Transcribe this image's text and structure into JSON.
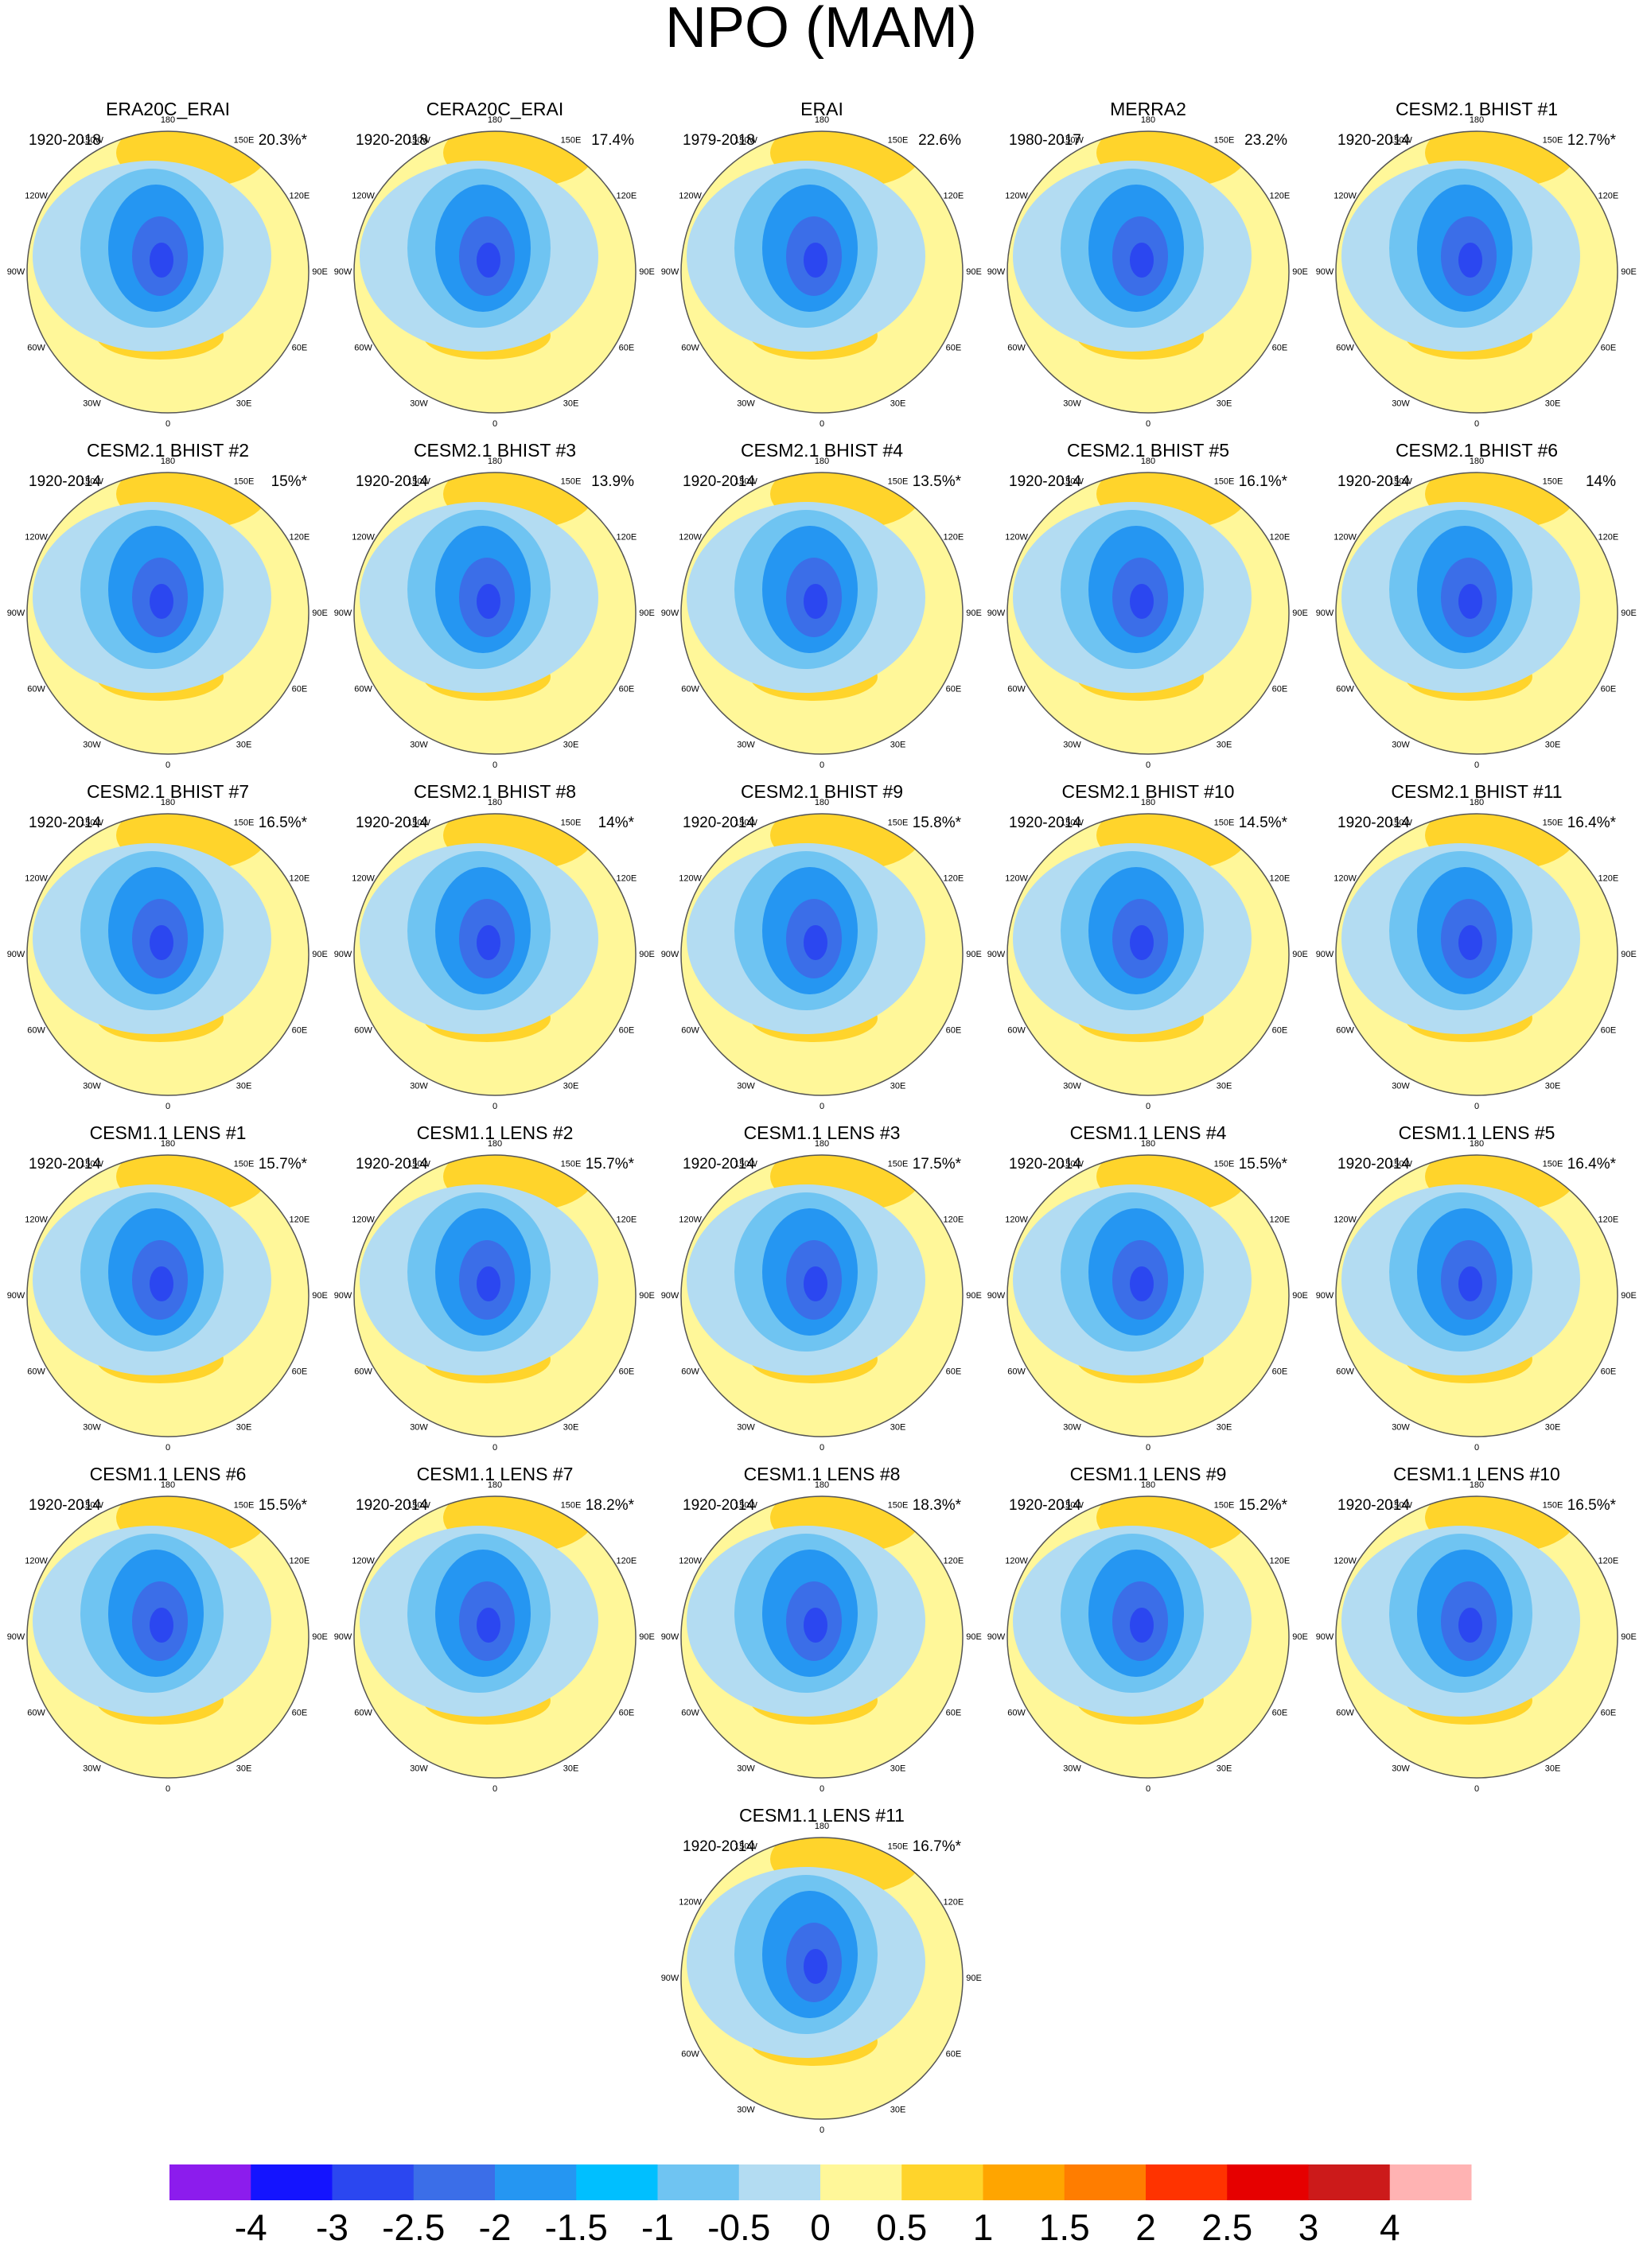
{
  "title": "NPO (MAM)",
  "longitude_labels": [
    "180",
    "150W",
    "150E",
    "120W",
    "120E",
    "90W",
    "90E",
    "60W",
    "60E",
    "30W",
    "30E",
    "0"
  ],
  "panels": [
    {
      "name": "ERA20C_ERAI",
      "period": "1920-2018",
      "percent": "20.3%*"
    },
    {
      "name": "CERA20C_ERAI",
      "period": "1920-2018",
      "percent": "17.4%"
    },
    {
      "name": "ERAI",
      "period": "1979-2018",
      "percent": "22.6%"
    },
    {
      "name": "MERRA2",
      "period": "1980-2017",
      "percent": "23.2%"
    },
    {
      "name": "CESM2.1 BHIST #1",
      "period": "1920-2014",
      "percent": "12.7%*"
    },
    {
      "name": "CESM2.1 BHIST #2",
      "period": "1920-2014",
      "percent": "15%*"
    },
    {
      "name": "CESM2.1 BHIST #3",
      "period": "1920-2014",
      "percent": "13.9%"
    },
    {
      "name": "CESM2.1 BHIST #4",
      "period": "1920-2014",
      "percent": "13.5%*"
    },
    {
      "name": "CESM2.1 BHIST #5",
      "period": "1920-2014",
      "percent": "16.1%*"
    },
    {
      "name": "CESM2.1 BHIST #6",
      "period": "1920-2014",
      "percent": "14%"
    },
    {
      "name": "CESM2.1 BHIST #7",
      "period": "1920-2014",
      "percent": "16.5%*"
    },
    {
      "name": "CESM2.1 BHIST #8",
      "period": "1920-2014",
      "percent": "14%*"
    },
    {
      "name": "CESM2.1 BHIST #9",
      "period": "1920-2014",
      "percent": "15.8%*"
    },
    {
      "name": "CESM2.1 BHIST #10",
      "period": "1920-2014",
      "percent": "14.5%*"
    },
    {
      "name": "CESM2.1 BHIST #11",
      "period": "1920-2014",
      "percent": "16.4%*"
    },
    {
      "name": "CESM1.1 LENS #1",
      "period": "1920-2014",
      "percent": "15.7%*"
    },
    {
      "name": "CESM1.1 LENS #2",
      "period": "1920-2014",
      "percent": "15.7%*"
    },
    {
      "name": "CESM1.1 LENS #3",
      "period": "1920-2014",
      "percent": "17.5%*"
    },
    {
      "name": "CESM1.1 LENS #4",
      "period": "1920-2014",
      "percent": "15.5%*"
    },
    {
      "name": "CESM1.1 LENS #5",
      "period": "1920-2014",
      "percent": "16.4%*"
    },
    {
      "name": "CESM1.1 LENS #6",
      "period": "1920-2014",
      "percent": "15.5%*"
    },
    {
      "name": "CESM1.1 LENS #7",
      "period": "1920-2014",
      "percent": "18.2%*"
    },
    {
      "name": "CESM1.1 LENS #8",
      "period": "1920-2014",
      "percent": "18.3%*"
    },
    {
      "name": "CESM1.1 LENS #9",
      "period": "1920-2014",
      "percent": "15.2%*"
    },
    {
      "name": "CESM1.1 LENS #10",
      "period": "1920-2014",
      "percent": "16.5%*"
    },
    {
      "name": "CESM1.1 LENS #11",
      "period": "1920-2014",
      "percent": "16.7%*"
    }
  ],
  "colorbar": {
    "colors": [
      "#8c1ced",
      "#1414ff",
      "#2b47f0",
      "#3b6ee8",
      "#2596f2",
      "#00bfff",
      "#6fc4f2",
      "#b3dcf2",
      "#fff799",
      "#ffd42b",
      "#ffa500",
      "#ff7d00",
      "#ff3300",
      "#e60000",
      "#cc1a1a",
      "#ffb3b3"
    ],
    "labels": [
      -4,
      -3,
      -2.5,
      -2,
      -1.5,
      -1,
      -0.5,
      0,
      0.5,
      1,
      1.5,
      2,
      2.5,
      3,
      4
    ]
  }
}
